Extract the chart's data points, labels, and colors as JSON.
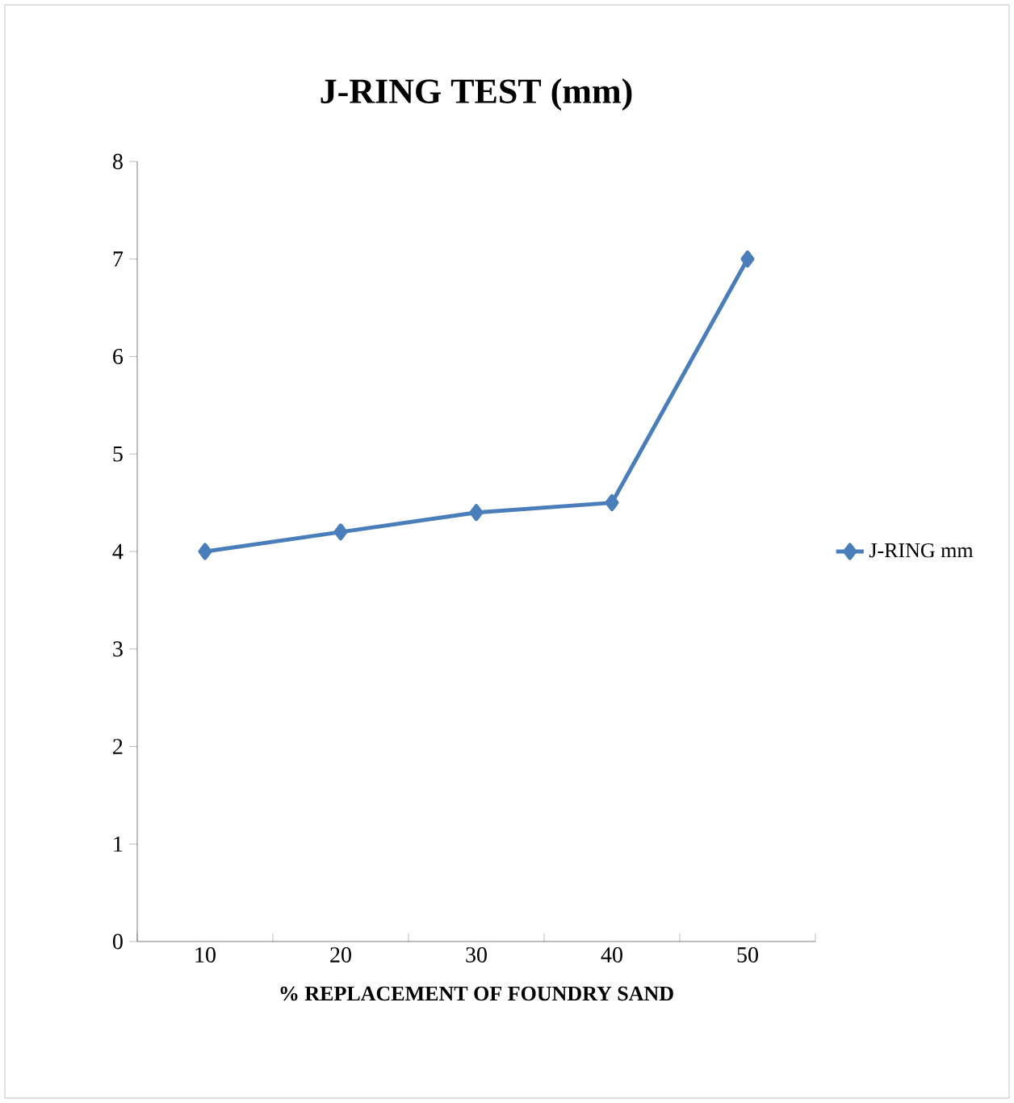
{
  "chart_data": {
    "type": "line",
    "title": "J-RING TEST (mm)",
    "xlabel": "% REPLACEMENT OF FOUNDRY SAND",
    "categories": [
      "10",
      "20",
      "30",
      "40",
      "50"
    ],
    "series": [
      {
        "name": "J-RING mm",
        "color": "#4a7ebb",
        "values": [
          4,
          4.2,
          4.4,
          4.5,
          7
        ]
      }
    ],
    "ylim": [
      0,
      8
    ],
    "yticks": [
      0,
      1,
      2,
      3,
      4,
      5,
      6,
      7,
      8
    ],
    "legend": "right",
    "marker": "diamond",
    "line_style": "solid"
  }
}
